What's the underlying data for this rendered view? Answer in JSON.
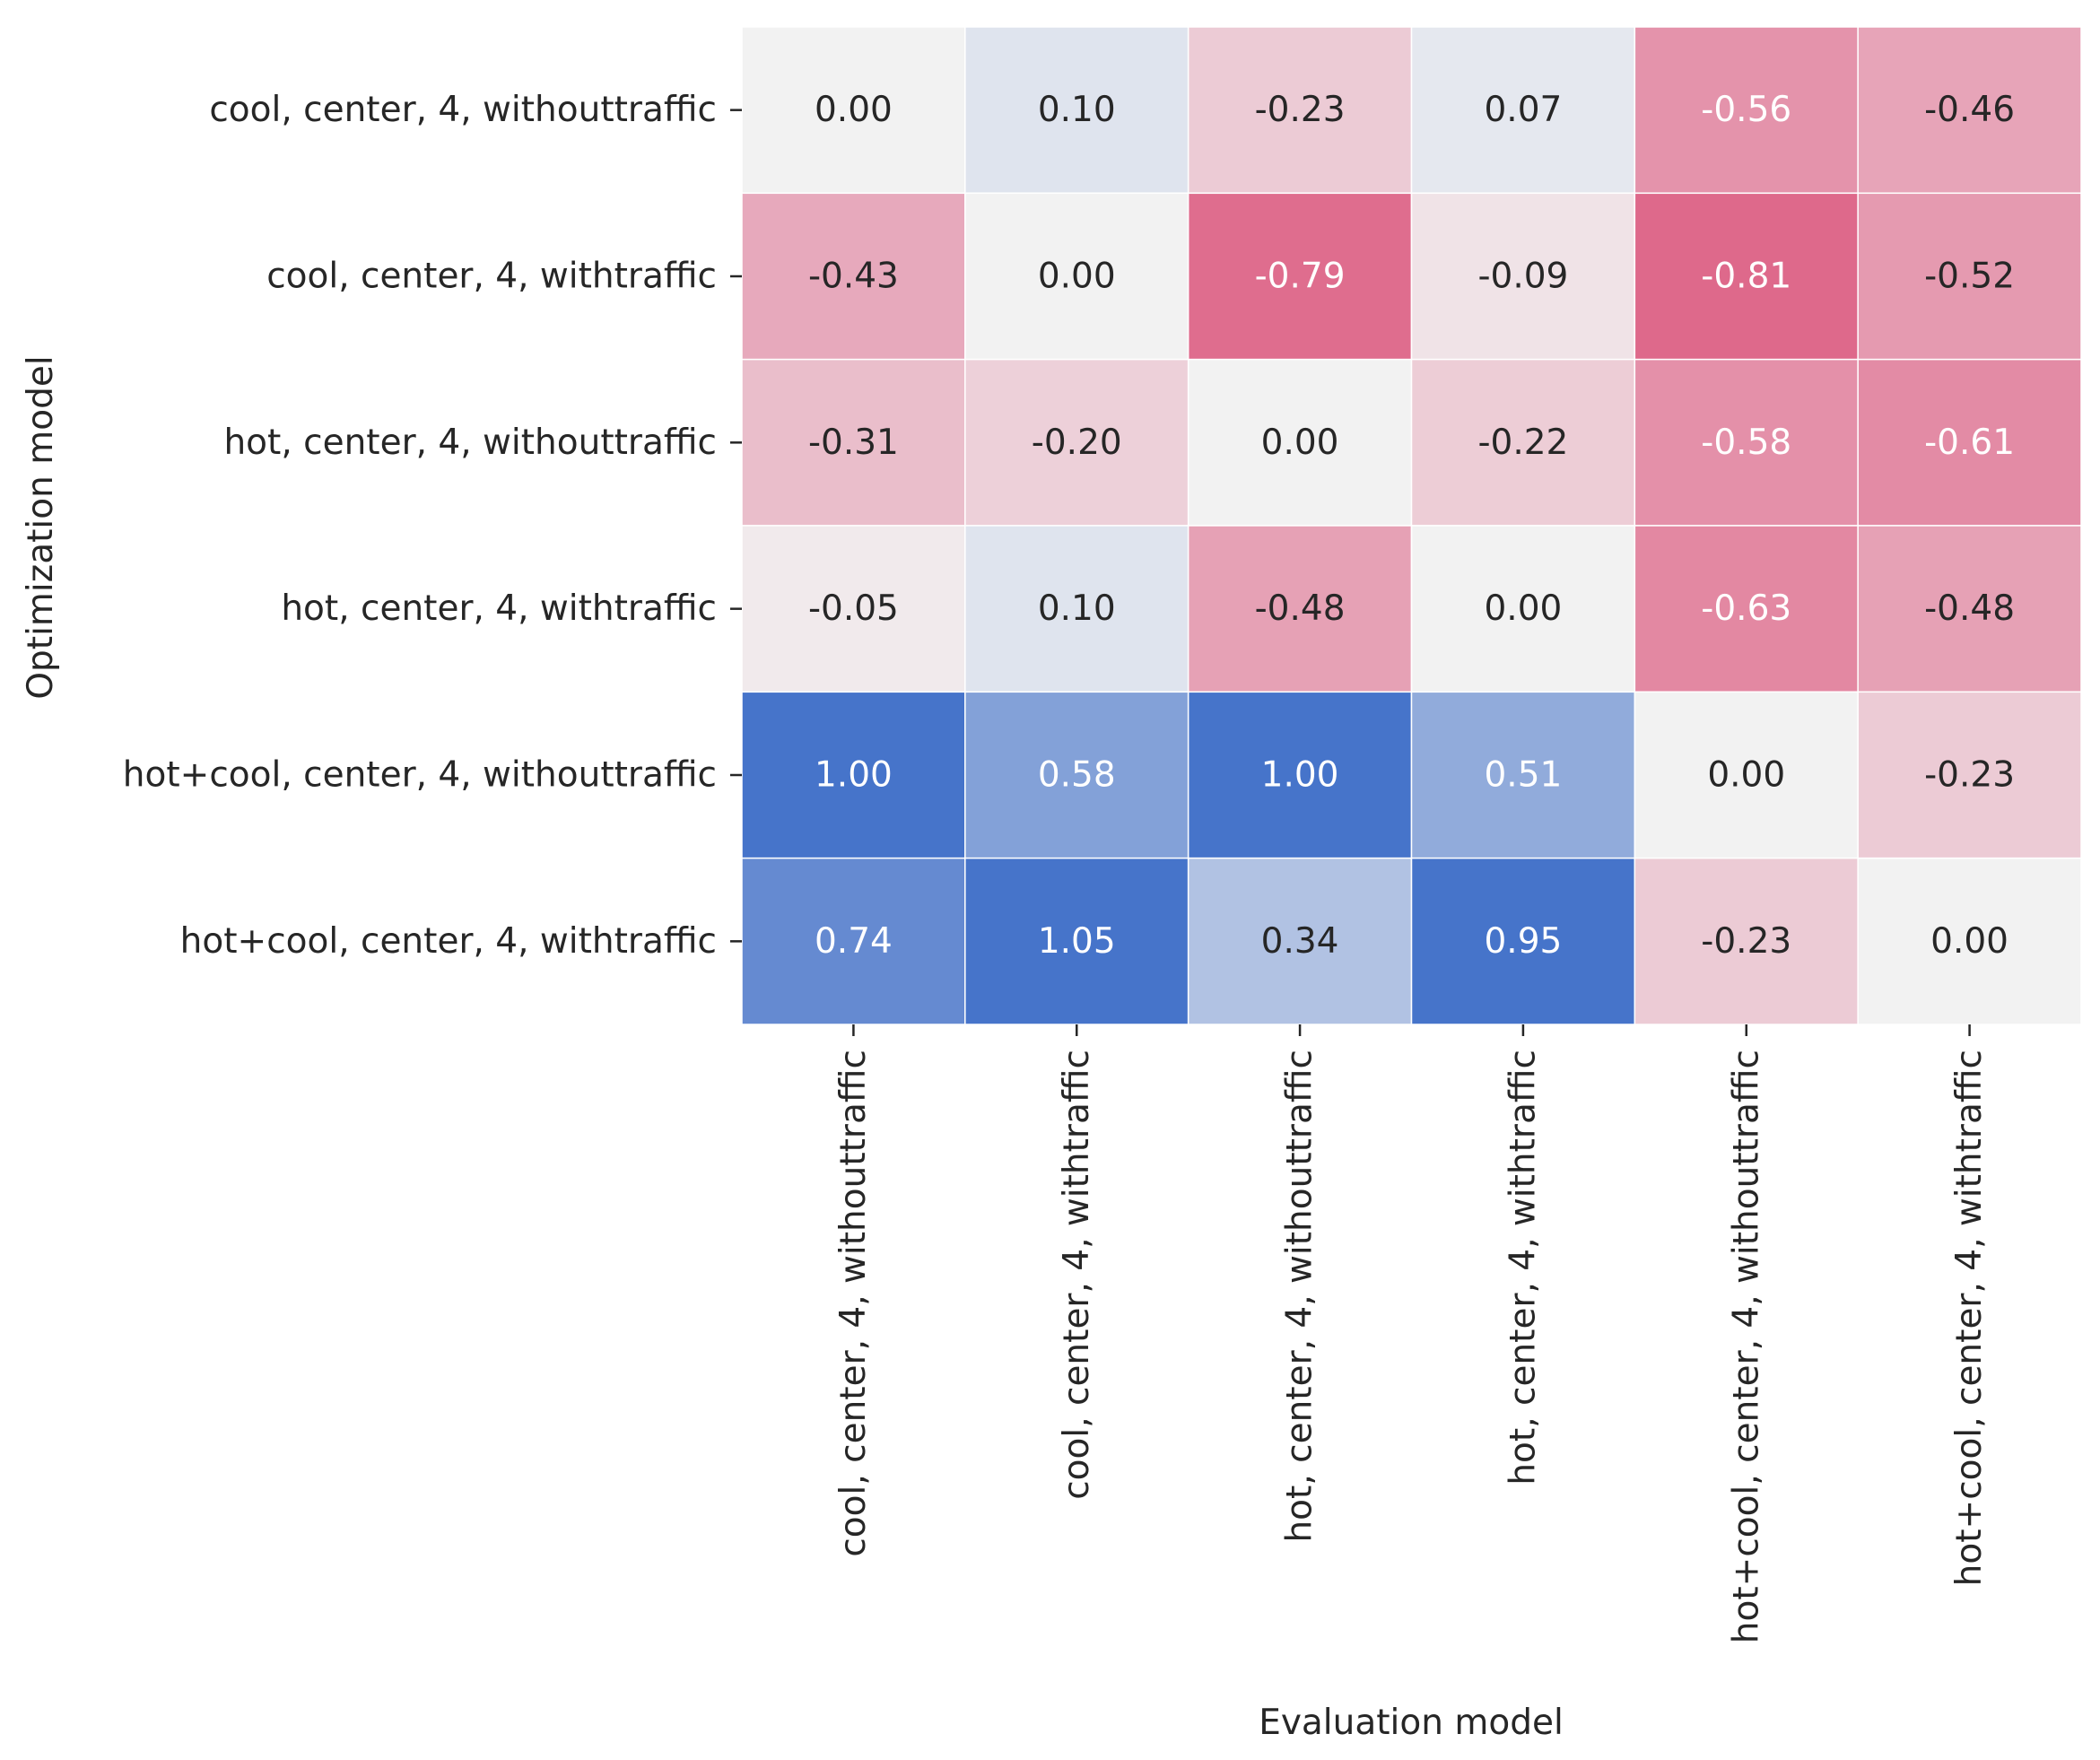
{
  "chart_data": {
    "type": "heatmap",
    "title": "",
    "xlabel": "Evaluation model",
    "ylabel": "Optimization model",
    "x_categories": [
      "cool, center, 4, withouttraffic",
      "cool, center, 4, withtraffic",
      "hot, center, 4, withouttraffic",
      "hot, center, 4, withtraffic",
      "hot+cool, center, 4, withouttraffic",
      "hot+cool, center, 4, withtraffic"
    ],
    "y_categories": [
      "cool, center, 4, withouttraffic",
      "cool, center, 4, withtraffic",
      "hot, center, 4, withouttraffic",
      "hot, center, 4, withtraffic",
      "hot+cool, center, 4, withouttraffic",
      "hot+cool, center, 4, withtraffic"
    ],
    "values": [
      [
        0.0,
        0.1,
        -0.23,
        0.07,
        -0.56,
        -0.46
      ],
      [
        -0.43,
        0.0,
        -0.79,
        -0.09,
        -0.81,
        -0.52
      ],
      [
        -0.31,
        -0.2,
        0.0,
        -0.22,
        -0.58,
        -0.61
      ],
      [
        -0.05,
        0.1,
        -0.48,
        0.0,
        -0.63,
        -0.48
      ],
      [
        1.0,
        0.58,
        1.0,
        0.51,
        0.0,
        -0.23
      ],
      [
        0.74,
        1.05,
        0.34,
        0.95,
        -0.23,
        0.0
      ]
    ],
    "cell_labels": [
      [
        "0.00",
        "0.10",
        "-0.23",
        "0.07",
        "-0.56",
        "-0.46"
      ],
      [
        "-0.43",
        "0.00",
        "-0.79",
        "-0.09",
        "-0.81",
        "-0.52"
      ],
      [
        "-0.31",
        "-0.20",
        "0.00",
        "-0.22",
        "-0.58",
        "-0.61"
      ],
      [
        "-0.05",
        "0.10",
        "-0.48",
        "0.00",
        "-0.63",
        "-0.48"
      ],
      [
        "1.00",
        "0.58",
        "1.00",
        "0.51",
        "0.00",
        "-0.23"
      ],
      [
        "0.74",
        "1.05",
        "0.34",
        "0.95",
        "-0.23",
        "0.00"
      ]
    ],
    "colormap": {
      "type": "diverging",
      "negative": "#dc5a80",
      "center": "#f2f2f2",
      "positive": "#4674ca",
      "vmin": -0.9,
      "vmax": 0.9
    },
    "colorbar": false,
    "grid_color": "#ffffff"
  }
}
